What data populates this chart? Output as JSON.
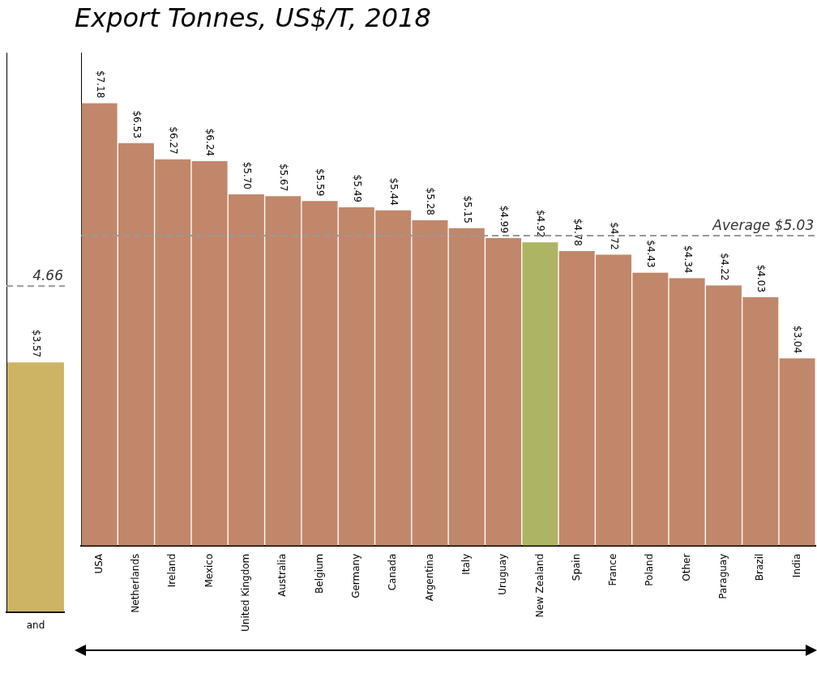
{
  "chart_data": [
    {
      "type": "bar",
      "categories": [
        "and"
      ],
      "values": [
        3.57
      ],
      "colors": [
        "#cdb464"
      ],
      "value_labels": [
        "$3.57"
      ],
      "ylim": [
        0,
        8
      ],
      "tick_labels": "x",
      "grid": false,
      "legend": false,
      "ref_lines": [
        {
          "axis": "y",
          "value": 4.66,
          "label": "4.66",
          "color": "#999999",
          "line_style": "dashed"
        }
      ]
    },
    {
      "type": "bar",
      "title": "Export Tonnes, US$/T, 2018",
      "categories": [
        "USA",
        "Netherlands",
        "Ireland",
        "Mexico",
        "United Kingdom",
        "Australia",
        "Belgium",
        "Germany",
        "Canada",
        "Argentina",
        "Italy",
        "Uruguay",
        "New Zealand",
        "Spain",
        "France",
        "Poland",
        "Other",
        "Paraguay",
        "Brazil",
        "India"
      ],
      "values": [
        7.18,
        6.53,
        6.27,
        6.24,
        5.7,
        5.67,
        5.59,
        5.49,
        5.44,
        5.28,
        5.15,
        4.99,
        4.92,
        4.78,
        4.72,
        4.43,
        4.34,
        4.22,
        4.03,
        3.04
      ],
      "colors": [
        "#c1876a",
        "#c1876a",
        "#c1876a",
        "#c1876a",
        "#c1876a",
        "#c1876a",
        "#c1876a",
        "#c1876a",
        "#c1876a",
        "#c1876a",
        "#c1876a",
        "#c1876a",
        "#adb464",
        "#c1876a",
        "#c1876a",
        "#c1876a",
        "#c1876a",
        "#c1876a",
        "#c1876a",
        "#c1876a"
      ],
      "value_labels": [
        "$7.18",
        "$6.53",
        "$6.27",
        "$6.24",
        "$5.70",
        "$5.67",
        "$5.59",
        "$5.49",
        "$5.44",
        "$5.28",
        "$5.15",
        "$4.99",
        "$4.92",
        "$4.78",
        "$4.72",
        "$4.43",
        "$4.34",
        "$4.22",
        "$4.03",
        "$3.04"
      ],
      "ylim": [
        0,
        8
      ],
      "tick_labels": "x",
      "grid": false,
      "legend": false,
      "ref_lines": [
        {
          "axis": "y",
          "value": 5.03,
          "label": "Average $5.03",
          "color": "#999999",
          "line_style": "dashed"
        }
      ]
    }
  ]
}
